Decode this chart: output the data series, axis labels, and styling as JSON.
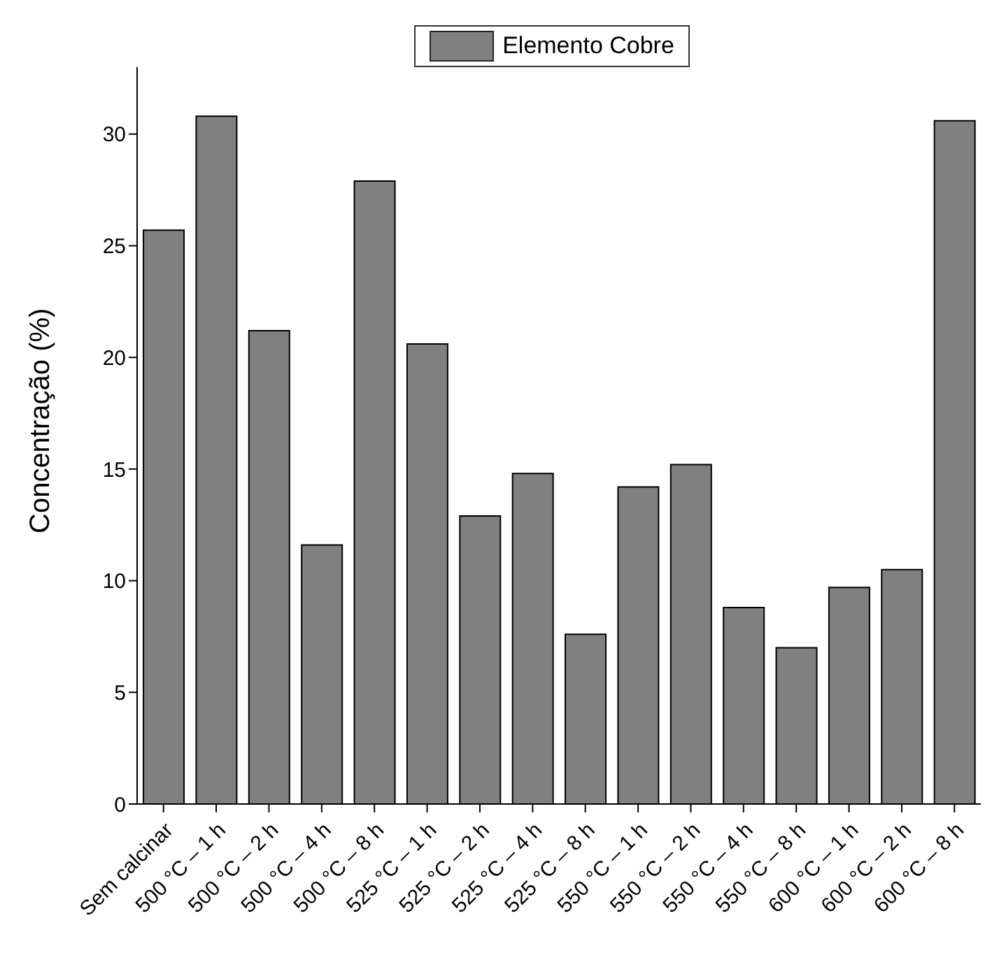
{
  "chart_data": {
    "type": "bar",
    "ylabel": "Concentração (%)",
    "categories": [
      "Sem calcinar",
      "500 °C – 1 h",
      "500 °C – 2 h",
      "500 °C – 4 h",
      "500 °C – 8 h",
      "525 °C – 1 h",
      "525 °C – 2 h",
      "525 °C – 4 h",
      "525 °C – 8 h",
      "550 °C – 1 h",
      "550 °C – 2 h",
      "550 °C – 4 h",
      "550 °C – 8 h",
      "600 °C – 1 h",
      "600 °C – 2 h",
      "600 °C – 8 h"
    ],
    "series": [
      {
        "name": "Elemento Cobre",
        "color": "#808080",
        "values": [
          25.7,
          30.8,
          21.2,
          11.6,
          27.9,
          20.6,
          12.9,
          14.8,
          7.6,
          14.2,
          15.2,
          8.8,
          7.0,
          9.7,
          10.5,
          30.6
        ]
      }
    ],
    "ylim": [
      0,
      33
    ],
    "yticks": [
      0,
      5,
      10,
      15,
      20,
      25,
      30
    ],
    "grid": false,
    "legend": "top"
  }
}
